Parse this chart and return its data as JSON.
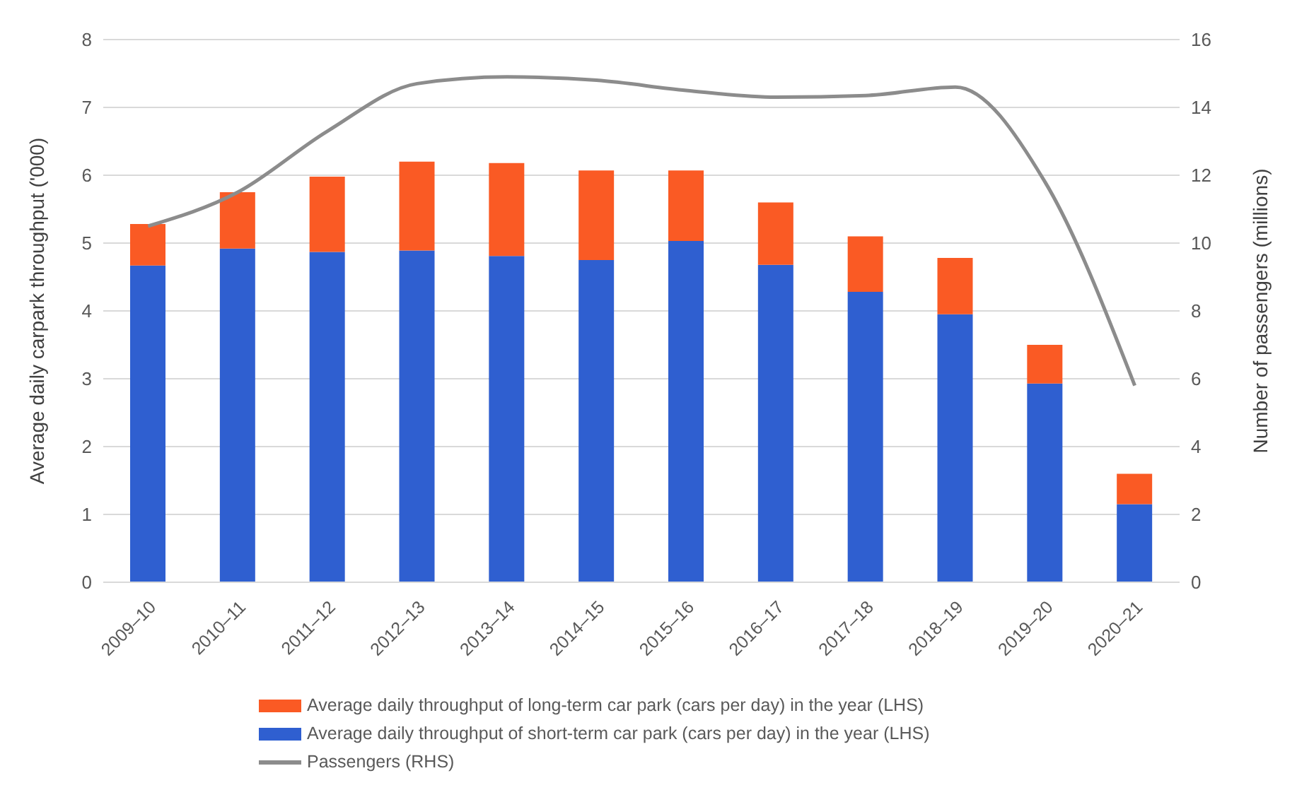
{
  "chart_data": {
    "type": "bar",
    "stacked": true,
    "ylabel": "Average daily carpark throughput ('000)",
    "y2label": "Number of passengers (millions)",
    "categories": [
      "2009–10",
      "2010–11",
      "2011–12",
      "2012–13",
      "2013–14",
      "2014–15",
      "2015–16",
      "2016–17",
      "2017–18",
      "2018–19",
      "2019–20",
      "2020–21"
    ],
    "series": [
      {
        "name": "Average daily throughput of short-term car park (cars per day) in the year (LHS)",
        "color": "#2f5fd0",
        "values": [
          4.67,
          4.92,
          4.87,
          4.89,
          4.81,
          4.75,
          5.03,
          4.68,
          4.28,
          3.95,
          2.93,
          1.15
        ]
      },
      {
        "name": "Average daily throughput of long-term car park (cars per day) in the year (LHS)",
        "color": "#fa5a24",
        "values": [
          0.61,
          0.83,
          1.11,
          1.31,
          1.37,
          1.32,
          1.04,
          0.92,
          0.82,
          0.83,
          0.57,
          0.45
        ]
      },
      {
        "name": "Passengers (RHS)",
        "type": "line",
        "axis": "y2",
        "color": "#8c8c8c",
        "values": [
          10.5,
          11.5,
          13.3,
          14.7,
          14.9,
          14.8,
          14.5,
          14.3,
          14.35,
          14.6,
          11.8,
          5.8
        ]
      }
    ],
    "ylim": [
      0,
      8
    ],
    "yticks": [
      0,
      1,
      2,
      3,
      4,
      5,
      6,
      7,
      8
    ],
    "y2lim": [
      0,
      16
    ],
    "y2ticks": [
      0,
      2,
      4,
      6,
      8,
      10,
      12,
      14,
      16
    ],
    "grid": "y",
    "legend": "bottom",
    "marker": "none"
  }
}
